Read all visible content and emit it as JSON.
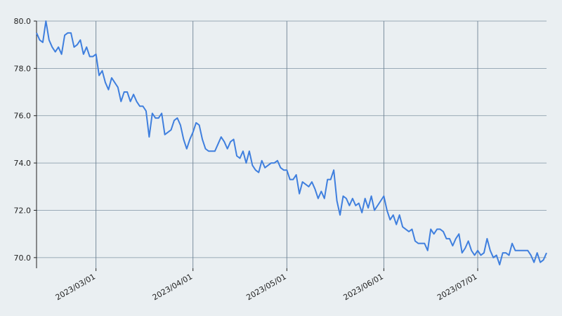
{
  "chart_data": {
    "type": "line",
    "color": "#3f7fde",
    "grid": true,
    "xlim": [
      "2023-02-10",
      "2023-07-23"
    ],
    "xticks": [
      {
        "value": "2023-03-01",
        "label": "2023/03/01"
      },
      {
        "value": "2023-04-01",
        "label": "2023/04/01"
      },
      {
        "value": "2023-05-01",
        "label": "2023/05/01"
      },
      {
        "value": "2023-06-01",
        "label": "2023/06/01"
      },
      {
        "value": "2023-07-01",
        "label": "2023/07/01"
      }
    ],
    "ylim": [
      69.55,
      80.0
    ],
    "yticks": [
      {
        "value": 70,
        "label": "70.0"
      },
      {
        "value": 72,
        "label": "72.0"
      },
      {
        "value": 74,
        "label": "74.0"
      },
      {
        "value": 76,
        "label": "76.0"
      },
      {
        "value": 78,
        "label": "78.0"
      },
      {
        "value": 80,
        "label": "80.0"
      }
    ],
    "x": [
      "2023-02-10",
      "2023-02-11",
      "2023-02-12",
      "2023-02-13",
      "2023-02-14",
      "2023-02-15",
      "2023-02-16",
      "2023-02-17",
      "2023-02-18",
      "2023-02-19",
      "2023-02-20",
      "2023-02-21",
      "2023-02-22",
      "2023-02-23",
      "2023-02-24",
      "2023-02-25",
      "2023-02-26",
      "2023-02-27",
      "2023-02-28",
      "2023-03-01",
      "2023-03-02",
      "2023-03-03",
      "2023-03-04",
      "2023-03-05",
      "2023-03-06",
      "2023-03-07",
      "2023-03-08",
      "2023-03-09",
      "2023-03-10",
      "2023-03-11",
      "2023-03-12",
      "2023-03-13",
      "2023-03-14",
      "2023-03-15",
      "2023-03-16",
      "2023-03-17",
      "2023-03-18",
      "2023-03-19",
      "2023-03-20",
      "2023-03-21",
      "2023-03-22",
      "2023-03-23",
      "2023-03-24",
      "2023-03-25",
      "2023-03-26",
      "2023-03-27",
      "2023-03-28",
      "2023-03-29",
      "2023-03-30",
      "2023-03-31",
      "2023-04-01",
      "2023-04-02",
      "2023-04-03",
      "2023-04-04",
      "2023-04-05",
      "2023-04-06",
      "2023-04-07",
      "2023-04-08",
      "2023-04-09",
      "2023-04-10",
      "2023-04-11",
      "2023-04-12",
      "2023-04-13",
      "2023-04-14",
      "2023-04-15",
      "2023-04-16",
      "2023-04-17",
      "2023-04-18",
      "2023-04-19",
      "2023-04-20",
      "2023-04-21",
      "2023-04-22",
      "2023-04-23",
      "2023-04-24",
      "2023-04-25",
      "2023-04-26",
      "2023-04-27",
      "2023-04-28",
      "2023-04-29",
      "2023-04-30",
      "2023-05-01",
      "2023-05-02",
      "2023-05-03",
      "2023-05-04",
      "2023-05-05",
      "2023-05-06",
      "2023-05-07",
      "2023-05-08",
      "2023-05-09",
      "2023-05-10",
      "2023-05-11",
      "2023-05-12",
      "2023-05-13",
      "2023-05-14",
      "2023-05-15",
      "2023-05-16",
      "2023-05-17",
      "2023-05-18",
      "2023-05-19",
      "2023-05-20",
      "2023-05-21",
      "2023-05-22",
      "2023-05-23",
      "2023-05-24",
      "2023-05-25",
      "2023-05-26",
      "2023-05-27",
      "2023-05-28",
      "2023-05-29",
      "2023-05-30",
      "2023-05-31",
      "2023-06-01",
      "2023-06-02",
      "2023-06-03",
      "2023-06-04",
      "2023-06-05",
      "2023-06-06",
      "2023-06-07",
      "2023-06-08",
      "2023-06-09",
      "2023-06-10",
      "2023-06-11",
      "2023-06-12",
      "2023-06-13",
      "2023-06-14",
      "2023-06-15",
      "2023-06-16",
      "2023-06-17",
      "2023-06-18",
      "2023-06-19",
      "2023-06-20",
      "2023-06-21",
      "2023-06-22",
      "2023-06-23",
      "2023-06-24",
      "2023-06-25",
      "2023-06-26",
      "2023-06-27",
      "2023-06-28",
      "2023-06-29",
      "2023-06-30",
      "2023-07-01",
      "2023-07-02",
      "2023-07-03",
      "2023-07-04",
      "2023-07-05",
      "2023-07-06",
      "2023-07-07",
      "2023-07-08",
      "2023-07-09",
      "2023-07-10",
      "2023-07-11",
      "2023-07-12",
      "2023-07-13",
      "2023-07-14",
      "2023-07-15",
      "2023-07-16",
      "2023-07-17",
      "2023-07-18",
      "2023-07-19",
      "2023-07-20",
      "2023-07-21",
      "2023-07-22",
      "2023-07-23"
    ],
    "values": [
      79.5,
      79.2,
      79.1,
      80.0,
      79.2,
      78.9,
      78.7,
      78.9,
      78.6,
      79.4,
      79.5,
      79.5,
      78.9,
      79.0,
      79.2,
      78.6,
      78.9,
      78.5,
      78.5,
      78.6,
      77.7,
      77.9,
      77.4,
      77.1,
      77.6,
      77.4,
      77.2,
      76.6,
      77.0,
      77.0,
      76.6,
      76.9,
      76.6,
      76.4,
      76.4,
      76.2,
      75.1,
      76.1,
      75.9,
      75.9,
      76.1,
      75.2,
      75.3,
      75.4,
      75.8,
      75.9,
      75.6,
      75.0,
      74.6,
      75.0,
      75.3,
      75.7,
      75.6,
      75.0,
      74.6,
      74.5,
      74.5,
      74.5,
      74.8,
      75.1,
      74.9,
      74.6,
      74.9,
      75.0,
      74.3,
      74.2,
      74.5,
      74.0,
      74.5,
      73.9,
      73.7,
      73.6,
      74.1,
      73.8,
      73.9,
      74.0,
      74.0,
      74.1,
      73.8,
      73.7,
      73.7,
      73.3,
      73.3,
      73.5,
      72.7,
      73.2,
      73.1,
      73.0,
      73.2,
      72.9,
      72.5,
      72.8,
      72.5,
      73.3,
      73.3,
      73.7,
      72.4,
      71.8,
      72.6,
      72.5,
      72.2,
      72.5,
      72.2,
      72.3,
      71.9,
      72.5,
      72.1,
      72.6,
      72.0,
      72.2,
      72.4,
      72.6,
      72.0,
      71.6,
      71.8,
      71.4,
      71.8,
      71.3,
      71.2,
      71.1,
      71.2,
      70.7,
      70.6,
      70.6,
      70.6,
      70.3,
      71.2,
      71.0,
      71.2,
      71.2,
      71.1,
      70.8,
      70.8,
      70.5,
      70.8,
      71.0,
      70.2,
      70.4,
      70.7,
      70.3,
      70.1,
      70.3,
      70.1,
      70.2,
      70.8,
      70.3,
      70.0,
      70.1,
      69.7,
      70.2,
      70.2,
      70.1,
      70.6,
      70.3,
      70.3,
      70.3,
      70.3,
      70.3,
      70.1,
      69.8,
      70.2,
      69.8,
      69.9,
      70.2
    ]
  }
}
